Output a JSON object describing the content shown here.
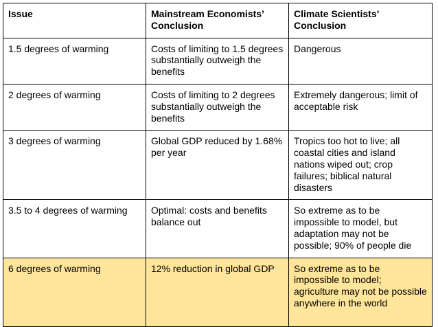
{
  "table": {
    "headers": [
      "Issue",
      "Mainstream Economists’ Conclusion",
      "Climate Scientists’ Conclusion"
    ],
    "rows": [
      {
        "issue": "1.5 degrees of warming",
        "economists": "Costs of limiting to 1.5 degrees substantially outweigh the benefits",
        "scientists": "Dangerous"
      },
      {
        "issue": "2 degrees of warming",
        "economists": "Costs of limiting to 2 degrees substantially outweigh the benefits",
        "scientists": "Extremely dangerous; limit of acceptable risk"
      },
      {
        "issue": "3 degrees of warming",
        "economists": "Global GDP reduced by 1.68% per year",
        "scientists": "Tropics too hot to live; all coastal cities and island nations wiped out; crop failures; biblical natural disasters"
      },
      {
        "issue": "3.5 to 4 degrees of warming",
        "economists": "Optimal: costs and benefits balance out",
        "scientists": "So extreme as to be impossible to model, but adaptation may not be possible; 90% of people die"
      },
      {
        "issue": "6 degrees of warming",
        "economists": "12% reduction in global GDP",
        "scientists": "So extreme as to be impossible to model; agriculture may not be possible anywhere in the world"
      }
    ]
  },
  "colors": {
    "border": "#000000",
    "highlight_row": "#ffe599",
    "background": "#ffffff"
  }
}
